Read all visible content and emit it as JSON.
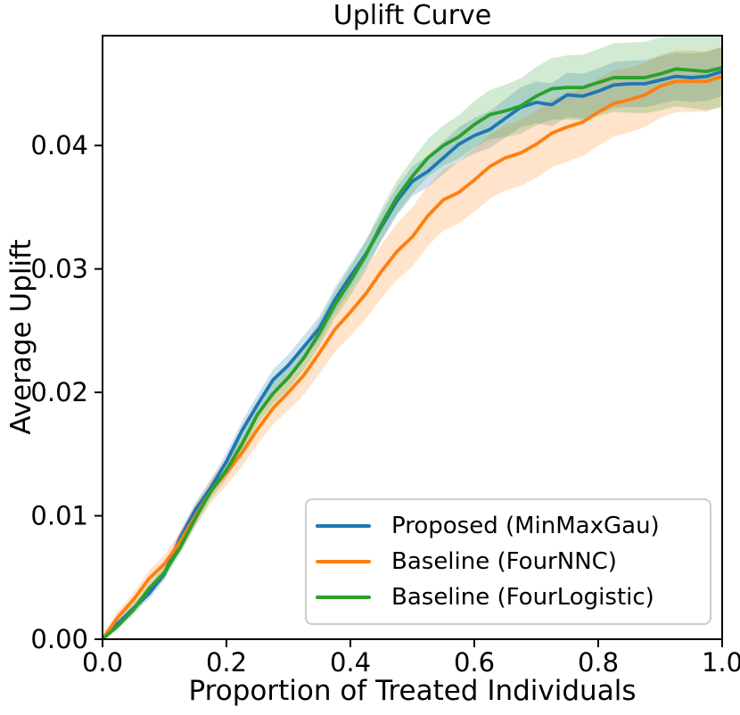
{
  "chart_data": {
    "type": "line",
    "title": "Uplift Curve",
    "xlabel": "Proportion of Treated Individuals",
    "ylabel": "Average Uplift",
    "xlim": [
      0.0,
      1.0
    ],
    "ylim": [
      0.0,
      0.0489
    ],
    "x_ticks": [
      0.0,
      0.2,
      0.4,
      0.6,
      0.8,
      1.0
    ],
    "x_tick_labels": [
      "0.0",
      "0.2",
      "0.4",
      "0.6",
      "0.8",
      "1.0"
    ],
    "y_ticks": [
      0.0,
      0.01,
      0.02,
      0.03,
      0.04
    ],
    "y_tick_labels": [
      "0.00",
      "0.01",
      "0.02",
      "0.03",
      "0.04"
    ],
    "grid": false,
    "legend_position": "lower right",
    "band_opacity": 0.22,
    "axis_color": "#000000",
    "x": [
      0.0,
      0.025,
      0.05,
      0.075,
      0.1,
      0.125,
      0.15,
      0.175,
      0.2,
      0.225,
      0.25,
      0.275,
      0.3,
      0.325,
      0.35,
      0.375,
      0.4,
      0.425,
      0.45,
      0.475,
      0.5,
      0.525,
      0.55,
      0.575,
      0.6,
      0.625,
      0.65,
      0.675,
      0.7,
      0.725,
      0.75,
      0.775,
      0.8,
      0.825,
      0.85,
      0.875,
      0.9,
      0.925,
      0.95,
      0.975,
      1.0
    ],
    "series": [
      {
        "name": "Proposed (MinMaxGau)",
        "color": "#1f77b4",
        "values": [
          0.0,
          0.0013,
          0.0025,
          0.0037,
          0.0053,
          0.0082,
          0.0105,
          0.0123,
          0.0144,
          0.0169,
          0.019,
          0.021,
          0.0222,
          0.0237,
          0.0252,
          0.0275,
          0.0294,
          0.0312,
          0.0334,
          0.0355,
          0.0371,
          0.0379,
          0.039,
          0.0401,
          0.0408,
          0.0413,
          0.0422,
          0.0431,
          0.0435,
          0.0433,
          0.0441,
          0.044,
          0.0444,
          0.0449,
          0.045,
          0.045,
          0.0453,
          0.0456,
          0.0455,
          0.0456,
          0.046
        ],
        "band_x": [
          0.0,
          0.25,
          0.5,
          0.75,
          1.0
        ],
        "band_half_width": [
          0.0003,
          0.0008,
          0.0012,
          0.0018,
          0.002
        ]
      },
      {
        "name": "Baseline (FourNNC)",
        "color": "#ff7f0e",
        "values": [
          0.0,
          0.0018,
          0.0032,
          0.0049,
          0.0061,
          0.0079,
          0.01,
          0.012,
          0.0135,
          0.0151,
          0.017,
          0.0187,
          0.02,
          0.0214,
          0.0232,
          0.0251,
          0.0265,
          0.028,
          0.0298,
          0.0314,
          0.0326,
          0.0343,
          0.0356,
          0.0362,
          0.0372,
          0.0383,
          0.039,
          0.0394,
          0.0401,
          0.041,
          0.0415,
          0.0419,
          0.0427,
          0.0434,
          0.0437,
          0.0441,
          0.0448,
          0.0452,
          0.0452,
          0.0452,
          0.0456
        ],
        "band_x": [
          0.0,
          0.25,
          0.5,
          0.75,
          1.0
        ],
        "band_half_width": [
          0.0004,
          0.0012,
          0.0024,
          0.0028,
          0.0024
        ]
      },
      {
        "name": "Baseline (FourLogistic)",
        "color": "#2ca02c",
        "values": [
          0.0,
          0.0011,
          0.0024,
          0.0041,
          0.0054,
          0.0074,
          0.0098,
          0.012,
          0.0137,
          0.0158,
          0.0182,
          0.0199,
          0.0212,
          0.0228,
          0.0248,
          0.0271,
          0.029,
          0.0311,
          0.0336,
          0.0358,
          0.0375,
          0.039,
          0.04,
          0.0407,
          0.0417,
          0.0425,
          0.0428,
          0.0432,
          0.044,
          0.0446,
          0.0447,
          0.0447,
          0.0451,
          0.0455,
          0.0455,
          0.0455,
          0.0458,
          0.0462,
          0.0461,
          0.046,
          0.0463
        ],
        "band_x": [
          0.0,
          0.25,
          0.5,
          0.75,
          1.0
        ],
        "band_half_width": [
          0.0003,
          0.0008,
          0.0014,
          0.0026,
          0.0032
        ]
      }
    ]
  }
}
